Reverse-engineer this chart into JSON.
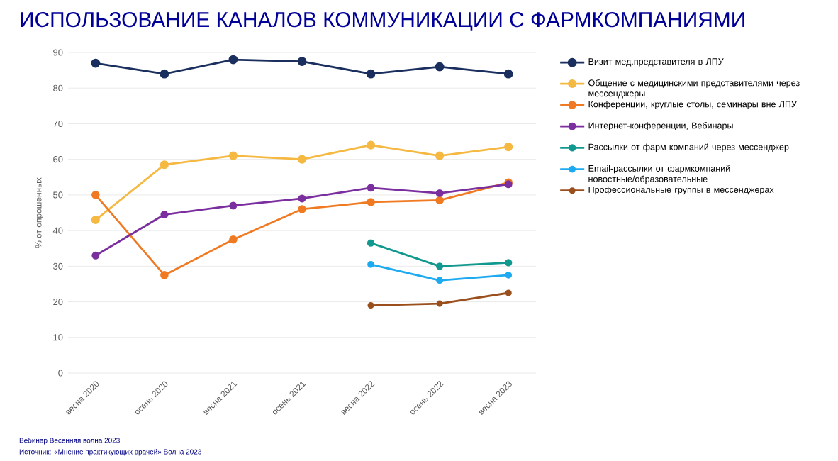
{
  "chart_data": {
    "type": "line",
    "title": "ИСПОЛЬЗОВАНИЕ КАНАЛОВ КОММУНИКАЦИИ С ФАРМКОМПАНИЯМИ",
    "ylabel": "% от опрошенных",
    "categories": [
      "весна 2020",
      "осень 2020",
      "весна 2021",
      "осень 2021",
      "весна 2022",
      "осень 2022",
      "весна 2023"
    ],
    "series": [
      {
        "name": "Визит мед.представителя в ЛПУ",
        "color": "#1b2f5e",
        "values": [
          87,
          84,
          88,
          87.5,
          84,
          86,
          84
        ]
      },
      {
        "name": "Общение с медицинскими представителями через мессенджеры",
        "color": "#f5b942",
        "values": [
          43,
          58.5,
          61,
          60,
          64,
          61,
          63.5
        ]
      },
      {
        "name": "Конференции, круглые столы, семинары вне ЛПУ",
        "color": "#f07a22",
        "values": [
          50,
          27.5,
          37.5,
          46,
          48,
          48.5,
          53.5
        ]
      },
      {
        "name": "Интернет-конференции, Вебинары",
        "color": "#7b2f9e",
        "values": [
          33,
          44.5,
          47,
          49,
          52,
          50.5,
          53
        ]
      },
      {
        "name": "Рассылки от фарм компаний через мессенджер",
        "color": "#12998f",
        "values": [
          null,
          null,
          null,
          null,
          36.5,
          30,
          31
        ]
      },
      {
        "name": "Email-рассылки от фармкомпаний новостные/образовательные",
        "color": "#1eaaf0",
        "values": [
          null,
          null,
          null,
          null,
          30.5,
          26,
          27.5
        ]
      },
      {
        "name": "Профессиональные группы в мессенджерах",
        "color": "#9a4f1c",
        "values": [
          null,
          null,
          null,
          null,
          19,
          19.5,
          22.5
        ]
      }
    ],
    "ylim": [
      0,
      90
    ],
    "yticks": [
      0,
      10,
      20,
      30,
      40,
      50,
      60,
      70,
      80,
      90
    ],
    "grid": "y",
    "legend": "right",
    "marker": "circle",
    "line_style": "solid",
    "annotations": [
      "Вебинар Весенняя волна 2023",
      "Источник: «Мнение практикующих врачей» Волна 2023"
    ]
  }
}
